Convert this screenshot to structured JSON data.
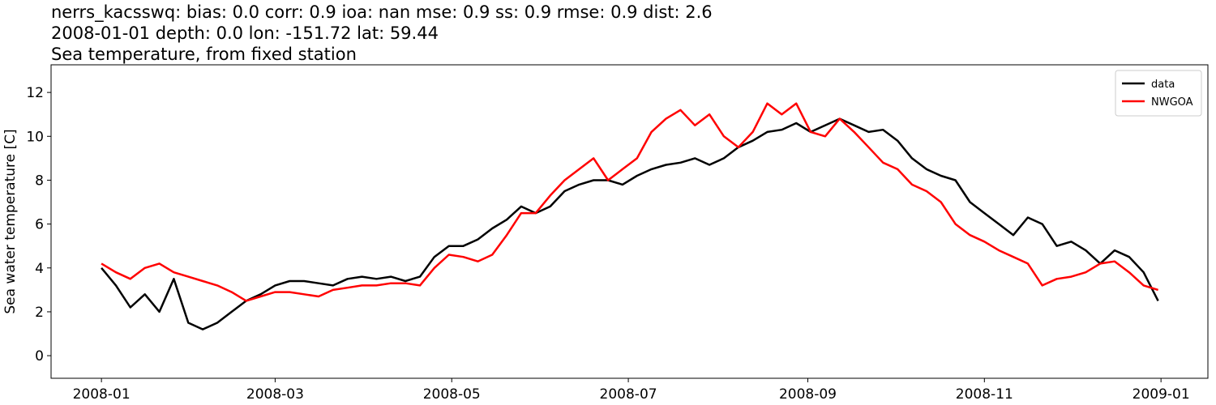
{
  "chart_data": {
    "type": "line",
    "title": [
      "nerrs_kacsswq: bias: 0.0  corr: 0.9  ioa: nan  mse: 0.9  ss: 0.9  rmse: 0.9  dist: 2.6",
      "2008-01-01 depth: 0.0 lon: -151.72 lat: 59.44",
      "Sea temperature, from fixed station"
    ],
    "y_label": "Sea water temperature [C]",
    "x": [
      0,
      5,
      10,
      15,
      20,
      25,
      30,
      35,
      40,
      45,
      50,
      55,
      60,
      65,
      70,
      75,
      80,
      85,
      90,
      95,
      100,
      105,
      110,
      115,
      120,
      125,
      130,
      135,
      140,
      145,
      150,
      155,
      160,
      165,
      170,
      175,
      180,
      185,
      190,
      195,
      200,
      205,
      210,
      215,
      220,
      225,
      230,
      235,
      240,
      245,
      250,
      255,
      260,
      265,
      270,
      275,
      280,
      285,
      290,
      295,
      300,
      305,
      310,
      315,
      320,
      325,
      330,
      335,
      340,
      345,
      350,
      355,
      360,
      365
    ],
    "series": [
      {
        "name": "data",
        "color": "#000000",
        "values": [
          4.0,
          3.2,
          2.2,
          2.8,
          2.0,
          3.5,
          1.5,
          1.2,
          1.5,
          2.0,
          2.5,
          2.8,
          3.2,
          3.4,
          3.4,
          3.3,
          3.2,
          3.5,
          3.6,
          3.5,
          3.6,
          3.4,
          3.6,
          4.5,
          5.0,
          5.0,
          5.3,
          5.8,
          6.2,
          6.8,
          6.5,
          6.8,
          7.5,
          7.8,
          8.0,
          8.0,
          7.8,
          8.2,
          8.5,
          8.7,
          8.8,
          9.0,
          8.7,
          9.0,
          9.5,
          9.8,
          10.2,
          10.3,
          10.6,
          10.2,
          10.5,
          10.8,
          10.5,
          10.2,
          10.3,
          9.8,
          9.0,
          8.5,
          8.2,
          8.0,
          7.0,
          6.5,
          6.0,
          5.5,
          6.3,
          6.0,
          5.0,
          5.2,
          4.8,
          4.2,
          4.8,
          4.5,
          3.8,
          2.5
        ]
      },
      {
        "name": "NWGOA",
        "color": "#ff0000",
        "values": [
          4.2,
          3.8,
          3.5,
          4.0,
          4.2,
          3.8,
          3.6,
          3.4,
          3.2,
          2.9,
          2.5,
          2.7,
          2.9,
          2.9,
          2.8,
          2.7,
          3.0,
          3.1,
          3.2,
          3.2,
          3.3,
          3.3,
          3.2,
          4.0,
          4.6,
          4.5,
          4.3,
          4.6,
          5.5,
          6.5,
          6.5,
          7.3,
          8.0,
          8.5,
          9.0,
          8.0,
          8.5,
          9.0,
          10.2,
          10.8,
          11.2,
          10.5,
          11.0,
          10.0,
          9.5,
          10.2,
          11.5,
          11.0,
          11.5,
          10.2,
          10.0,
          10.8,
          10.2,
          9.5,
          8.8,
          8.5,
          7.8,
          7.5,
          7.0,
          6.0,
          5.5,
          5.2,
          4.8,
          4.5,
          4.2,
          3.2,
          3.5,
          3.6,
          3.8,
          4.2,
          4.3,
          3.8,
          3.2,
          3.0
        ]
      }
    ],
    "xlim": [
      -17.4,
      382.2
    ],
    "xticks": [
      {
        "value": 0,
        "label": "2008-01"
      },
      {
        "value": 60,
        "label": "2008-03"
      },
      {
        "value": 121,
        "label": "2008-05"
      },
      {
        "value": 182,
        "label": "2008-07"
      },
      {
        "value": 244,
        "label": "2008-09"
      },
      {
        "value": 305,
        "label": "2008-11"
      },
      {
        "value": 366,
        "label": "2009-01"
      }
    ],
    "ylim": [
      -1.03,
      13.26
    ],
    "yticks": [
      0,
      2,
      4,
      6,
      8,
      10,
      12
    ],
    "legend": "upper right",
    "grid": false
  }
}
